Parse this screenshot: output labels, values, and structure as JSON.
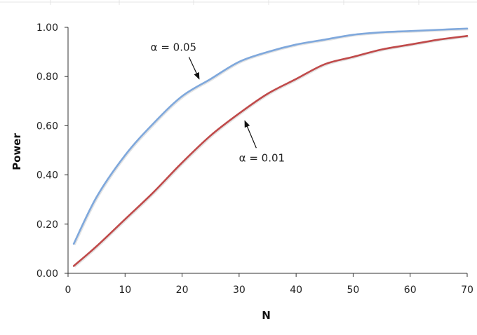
{
  "chart_data": {
    "type": "line",
    "title": "",
    "xlabel": "N",
    "ylabel": "Power",
    "xlim": [
      0,
      70
    ],
    "ylim": [
      0,
      1
    ],
    "x_ticks": [
      0,
      10,
      20,
      30,
      40,
      50,
      60,
      70
    ],
    "y_ticks": [
      0,
      0.2,
      0.4,
      0.6,
      0.8,
      1.0
    ],
    "x_tick_labels": [
      "0",
      "10",
      "20",
      "30",
      "40",
      "50",
      "60",
      "70"
    ],
    "y_tick_labels": [
      "0.00",
      "0.20",
      "0.40",
      "0.60",
      "0.80",
      "1.00"
    ],
    "grid": false,
    "legend": "none",
    "series": [
      {
        "color": "#7fa8dc",
        "x": [
          1,
          5,
          10,
          15,
          20,
          25,
          30,
          35,
          40,
          45,
          50,
          55,
          60,
          65,
          70
        ],
        "y": [
          0.12,
          0.31,
          0.48,
          0.61,
          0.72,
          0.79,
          0.86,
          0.9,
          0.93,
          0.95,
          0.97,
          0.98,
          0.985,
          0.99,
          0.995
        ]
      },
      {
        "color": "#c04a4a",
        "x": [
          1,
          5,
          10,
          15,
          20,
          25,
          30,
          35,
          40,
          45,
          50,
          55,
          60,
          65,
          70
        ],
        "y": [
          0.03,
          0.11,
          0.22,
          0.33,
          0.45,
          0.56,
          0.65,
          0.73,
          0.79,
          0.85,
          0.88,
          0.91,
          0.93,
          0.95,
          0.965
        ]
      }
    ],
    "annotations": [
      {
        "text": "α = 0.05",
        "x": 18.5,
        "y": 0.905,
        "arrow_to": [
          23,
          0.79
        ]
      },
      {
        "text": "α = 0.01",
        "x": 34,
        "y": 0.455,
        "arrow_to": [
          31,
          0.62
        ]
      }
    ]
  }
}
